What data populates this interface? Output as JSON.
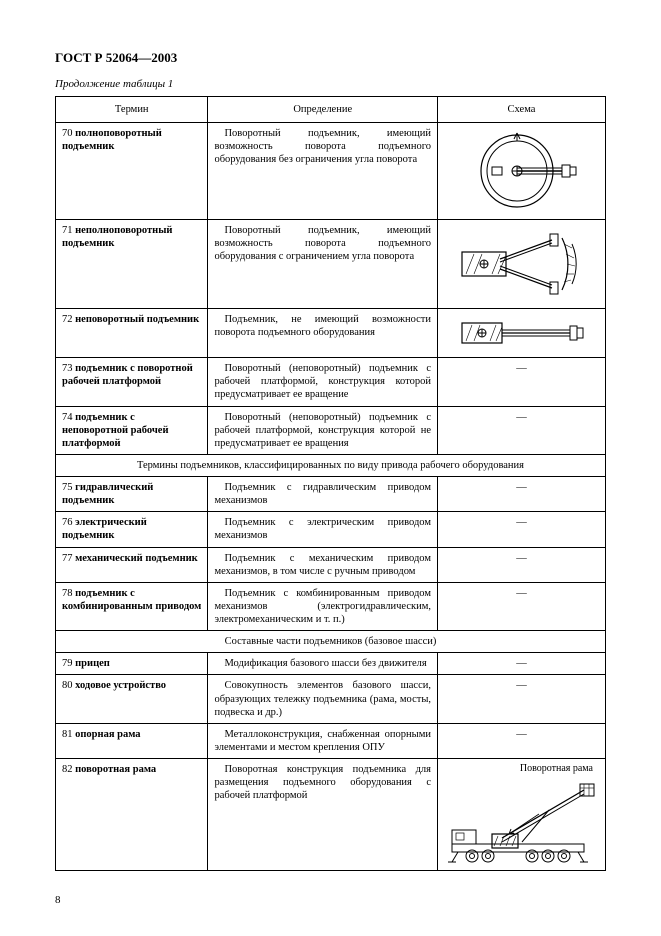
{
  "doc_title": "ГОСТ Р 52064—2003",
  "continuation": "Продолжение таблицы 1",
  "page_number": "8",
  "headers": {
    "term": "Термин",
    "definition": "Определение",
    "scheme": "Схема"
  },
  "rows": [
    {
      "num": "70",
      "term": "полноповоротный подъемник",
      "def": "Поворотный подъемник, имеющий возможность поворота подъемного оборудования без ограничения угла поворота",
      "scheme": "full_rotation"
    },
    {
      "num": "71",
      "term": "неполноповоротный подъемник",
      "def": "Поворотный подъемник, имеющий возможность поворота подъемного оборудования с ограничением угла поворота",
      "scheme": "partial_rotation"
    },
    {
      "num": "72",
      "term": "неповоротный подъемник",
      "def": "Подъемник, не имеющий возможности поворота подъемного оборудования",
      "scheme": "no_rotation"
    },
    {
      "num": "73",
      "term": "подъемник с поворотной рабочей платформой",
      "def": "Поворотный (неповоротный) подъемник с рабочей платформой, конструкция которой предусматривает ее вращение",
      "scheme": "dash"
    },
    {
      "num": "74",
      "term": "подъемник с неповоротной рабочей платформой",
      "def": "Поворотный (неповоротный) подъемник с рабочей платформой, конструкция которой не предусматривает ее вращения",
      "scheme": "dash"
    }
  ],
  "section1": "Термины подъемников, классифицированных по виду привода рабочего оборудования",
  "rows2": [
    {
      "num": "75",
      "term": "гидравлический подъемник",
      "def": "Подъемник с гидравлическим приводом механизмов",
      "scheme": "dash"
    },
    {
      "num": "76",
      "term": "электрический подъемник",
      "def": "Подъемник с электрическим приводом механизмов",
      "scheme": "dash"
    },
    {
      "num": "77",
      "term": "механический подъемник",
      "def": "Подъемник с механическим приводом механизмов, в том числе с ручным приводом",
      "scheme": "dash"
    },
    {
      "num": "78",
      "term": "подъемник с комбинированным приводом",
      "def": "Подъемник с комбинированным приводом механизмов (электрогидравлическим, электромеханическим и т. п.)",
      "scheme": "dash"
    }
  ],
  "section2": "Составные части подъемников (базовое шасси)",
  "rows3": [
    {
      "num": "79",
      "term": "прицеп",
      "def": "Модификация базового шасси без движителя",
      "scheme": "dash"
    },
    {
      "num": "80",
      "term": "ходовое устройство",
      "def": "Совокупность элементов базового шасси, образующих тележку подъемника (рама, мосты, подвеска и др.)",
      "scheme": "dash"
    },
    {
      "num": "81",
      "term": "опорная рама",
      "def": "Металлоконструкция, снабженная опорными элементами и местом крепления ОПУ",
      "scheme": "dash"
    },
    {
      "num": "82",
      "term": "поворотная рама",
      "def": "Поворотная конструкция подъемника для размещения подъемного оборудования с рабочей платформой",
      "scheme": "truck",
      "label": "Поворотная рама"
    }
  ],
  "colors": {
    "stroke": "#000000",
    "fill": "none",
    "hatch": "#000000"
  }
}
